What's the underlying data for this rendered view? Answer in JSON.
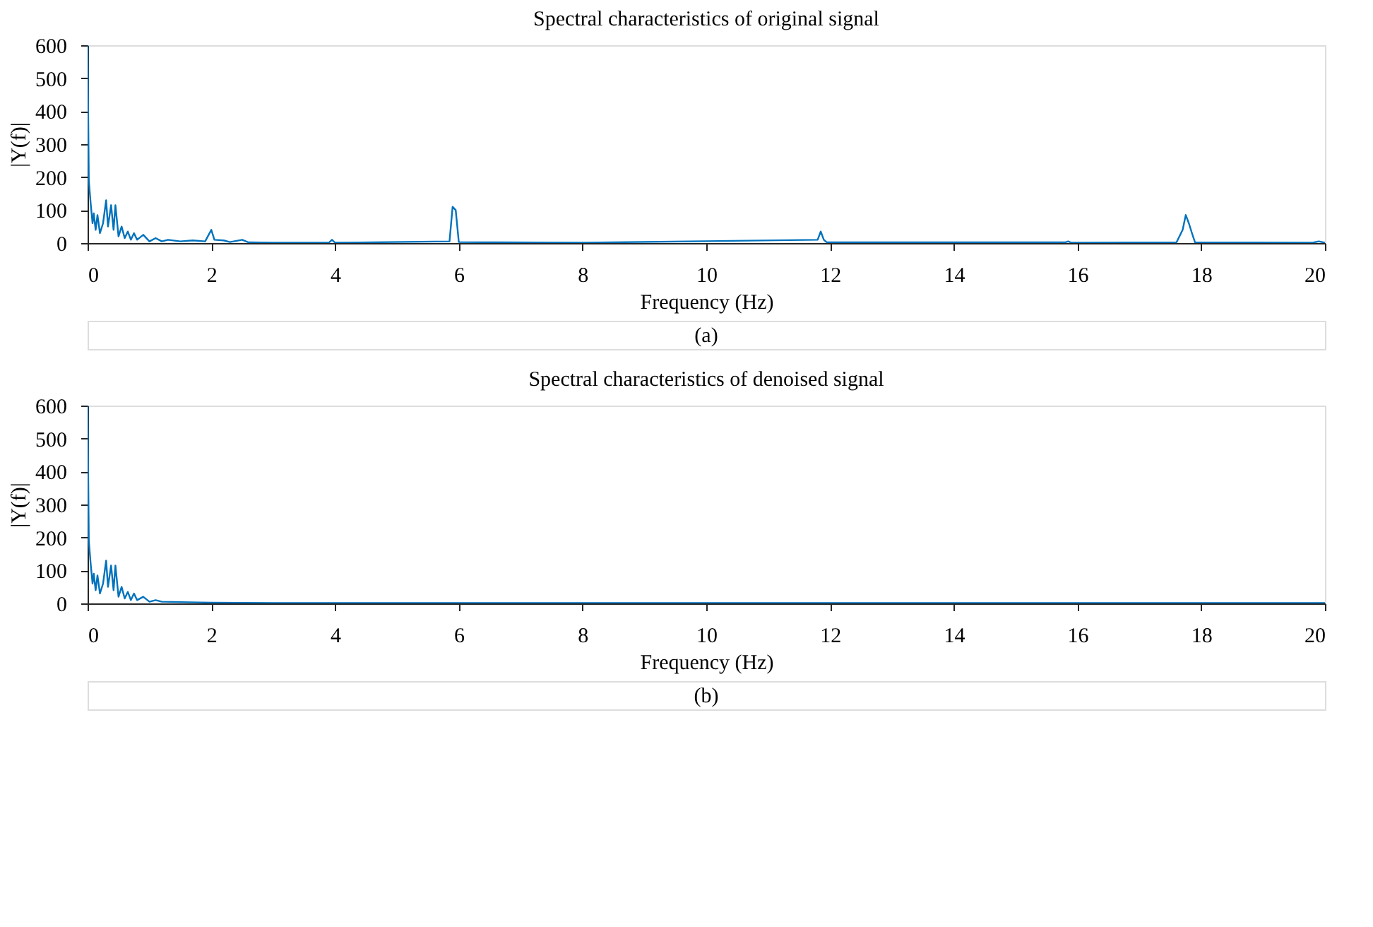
{
  "chart_data": [
    {
      "type": "line",
      "title": "Spectral characteristics of original signal",
      "xlabel": "Frequency (Hz)",
      "ylabel": "|Y(f)|",
      "annotations": [
        "(a)"
      ],
      "x": [
        0,
        0.02,
        0.05,
        0.08,
        0.1,
        0.13,
        0.16,
        0.2,
        0.25,
        0.3,
        0.33,
        0.38,
        0.42,
        0.45,
        0.5,
        0.55,
        0.6,
        0.65,
        0.7,
        0.75,
        0.8,
        0.9,
        1.0,
        1.1,
        1.2,
        1.3,
        1.5,
        1.7,
        1.9,
        2.0,
        2.05,
        2.2,
        2.3,
        2.5,
        2.6,
        3.0,
        3.9,
        3.95,
        4.0,
        5.85,
        5.9,
        5.95,
        6.0,
        8,
        11.8,
        11.85,
        11.9,
        11.95,
        15.8,
        15.85,
        15.9,
        17.6,
        17.7,
        17.75,
        17.8,
        17.85,
        17.9,
        19.8,
        19.9,
        20
      ],
      "series": [
        {
          "color": "#0072bd",
          "values": [
            600,
            190,
            120,
            60,
            90,
            40,
            85,
            30,
            60,
            130,
            50,
            115,
            40,
            115,
            20,
            50,
            15,
            35,
            10,
            30,
            10,
            25,
            5,
            15,
            5,
            10,
            5,
            8,
            5,
            40,
            10,
            8,
            3,
            10,
            2,
            1,
            1,
            10,
            1,
            5,
            110,
            100,
            3,
            1,
            10,
            35,
            10,
            2,
            2,
            5,
            1,
            2,
            40,
            85,
            60,
            30,
            2,
            1,
            5,
            1
          ]
        }
      ],
      "xlim": [
        0,
        20
      ],
      "xticks": [
        0,
        2,
        4,
        6,
        8,
        10,
        12,
        14,
        16,
        18,
        20
      ],
      "ylim": [
        0,
        600
      ],
      "yticks": [
        0,
        100,
        200,
        300,
        400,
        500,
        600
      ],
      "grid": false
    },
    {
      "type": "line",
      "title": "Spectral characteristics of denoised signal",
      "xlabel": "Frequency (Hz)",
      "ylabel": "|Y(f)|",
      "annotations": [
        "(b)"
      ],
      "x": [
        0,
        0.02,
        0.05,
        0.08,
        0.1,
        0.13,
        0.16,
        0.2,
        0.25,
        0.3,
        0.33,
        0.38,
        0.42,
        0.45,
        0.5,
        0.55,
        0.6,
        0.65,
        0.7,
        0.75,
        0.8,
        0.9,
        1.0,
        1.1,
        1.2,
        1.5,
        1.8,
        2.0,
        3.0,
        4.0,
        6.0,
        10,
        15,
        20
      ],
      "series": [
        {
          "color": "#0072bd",
          "values": [
            600,
            190,
            120,
            60,
            90,
            40,
            85,
            30,
            60,
            130,
            50,
            115,
            40,
            115,
            20,
            50,
            15,
            35,
            10,
            30,
            10,
            20,
            5,
            10,
            5,
            4,
            3,
            2,
            1,
            1,
            1,
            1,
            1,
            1
          ]
        }
      ],
      "xlim": [
        0,
        20
      ],
      "xticks": [
        0,
        2,
        4,
        6,
        8,
        10,
        12,
        14,
        16,
        18,
        20
      ],
      "ylim": [
        0,
        600
      ],
      "yticks": [
        0,
        100,
        200,
        300,
        400,
        500,
        600
      ],
      "grid": false
    }
  ]
}
